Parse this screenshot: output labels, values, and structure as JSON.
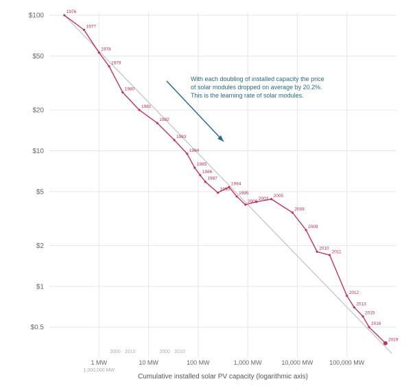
{
  "chart_data": {
    "type": "line",
    "xlabel": "Cumulative installed solar PV capacity (logarithmic axis)",
    "ylabel": "",
    "x_scale": "log",
    "y_scale": "log",
    "xlim_mw": [
      0.1,
      1000000
    ],
    "ylim_usd_per_w": [
      0.3,
      105
    ],
    "y_ticks": [
      {
        "value": 100,
        "label": "$100"
      },
      {
        "value": 50,
        "label": "$50"
      },
      {
        "value": 20,
        "label": "$20"
      },
      {
        "value": 10,
        "label": "$10"
      },
      {
        "value": 5,
        "label": "$5"
      },
      {
        "value": 2,
        "label": "$2"
      },
      {
        "value": 1,
        "label": "$1"
      },
      {
        "value": 0.5,
        "label": "$0.5"
      }
    ],
    "x_ticks": [
      {
        "value": 1,
        "label": "1 MW"
      },
      {
        "value": 10,
        "label": "10 MW"
      },
      {
        "value": 100,
        "label": "100 MW"
      },
      {
        "value": 1000,
        "label": "1,000 MW"
      },
      {
        "value": 10000,
        "label": "10,000 MW"
      },
      {
        "value": 100000,
        "label": "100,000 MW"
      }
    ],
    "x_sub_labels": [
      {
        "value": 1,
        "text": "1,000,000 MW"
      },
      {
        "value": 3,
        "text": "2000 · 2010"
      },
      {
        "value": 30,
        "text": "2000 · 2010"
      }
    ],
    "grid": true,
    "series": [
      {
        "color": "#c1345a",
        "points": [
          {
            "year": "1976",
            "x": 0.2,
            "y": 100
          },
          {
            "year": "1977",
            "x": 0.5,
            "y": 78
          },
          {
            "year": "1978",
            "x": 1.0,
            "y": 53
          },
          {
            "year": "1979",
            "x": 1.6,
            "y": 42
          },
          {
            "year": "1980",
            "x": 3.0,
            "y": 27
          },
          {
            "year": "1981",
            "x": 6.5,
            "y": 20
          },
          {
            "year": "1982",
            "x": 15,
            "y": 16
          },
          {
            "year": "1983",
            "x": 33,
            "y": 12
          },
          {
            "year": "1984",
            "x": 60,
            "y": 9.5
          },
          {
            "year": "1985",
            "x": 85,
            "y": 7.5
          },
          {
            "year": "1986",
            "x": 110,
            "y": 6.6
          },
          {
            "year": "1987",
            "x": 140,
            "y": 5.9
          },
          {
            "year": "1990",
            "x": 250,
            "y": 4.9
          },
          {
            "year": "1994",
            "x": 420,
            "y": 5.4
          },
          {
            "year": "1995",
            "x": 600,
            "y": 4.6
          },
          {
            "year": "2000",
            "x": 900,
            "y": 4.0
          },
          {
            "year": "2003",
            "x": 1500,
            "y": 4.2
          },
          {
            "year": "2005",
            "x": 3000,
            "y": 4.4
          },
          {
            "year": "2008",
            "x": 8000,
            "y": 3.5
          },
          {
            "year": "2009",
            "x": 15000,
            "y": 2.6
          },
          {
            "year": "2010",
            "x": 25000,
            "y": 1.8
          },
          {
            "year": "2011",
            "x": 45000,
            "y": 1.7
          },
          {
            "year": "2012",
            "x": 100000,
            "y": 0.85
          },
          {
            "year": "2013",
            "x": 140000,
            "y": 0.7
          },
          {
            "year": "2015",
            "x": 210000,
            "y": 0.6
          },
          {
            "year": "2016",
            "x": 280000,
            "y": 0.5
          },
          {
            "year": "2019",
            "x": 600000,
            "y": 0.38
          }
        ]
      }
    ],
    "trend_line": {
      "color": "#c9c9c9",
      "from": {
        "x": 0.2,
        "y": 100
      },
      "to": {
        "x": 800000,
        "y": 0.32
      }
    },
    "annotation": {
      "lines": [
        "With each doubling of installed capacity the price",
        "of solar modules dropped on average by 20.2%.",
        "This is the learning rate of solar modules."
      ],
      "arrow_color": "#2b6a86"
    }
  }
}
